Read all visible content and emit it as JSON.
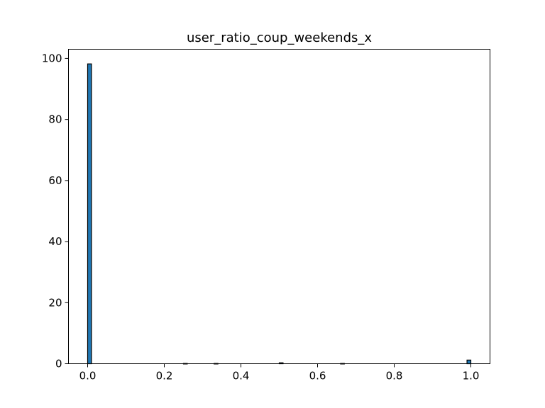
{
  "chart_data": {
    "type": "bar",
    "title": "user_ratio_coup_weekends_x",
    "xlabel": "",
    "ylabel": "",
    "xlim": [
      -0.05,
      1.05
    ],
    "ylim": [
      0,
      103
    ],
    "x_ticks": [
      0.0,
      0.2,
      0.4,
      0.6,
      0.8,
      1.0
    ],
    "x_tick_labels": [
      "0.0",
      "0.2",
      "0.4",
      "0.6",
      "0.8",
      "1.0"
    ],
    "y_ticks": [
      0,
      20,
      40,
      60,
      80,
      100
    ],
    "y_tick_labels": [
      "0",
      "20",
      "40",
      "60",
      "80",
      "100"
    ],
    "bin_width": 0.01,
    "bins": [
      {
        "x": 0.0,
        "value": 98.2
      },
      {
        "x": 0.25,
        "value": 0.1
      },
      {
        "x": 0.33,
        "value": 0.1
      },
      {
        "x": 0.5,
        "value": 0.3
      },
      {
        "x": 0.66,
        "value": 0.1
      },
      {
        "x": 0.99,
        "value": 1.2
      }
    ],
    "bar_color": "#1f77b4",
    "edge_color": "#000000",
    "grid": false,
    "legend": "none"
  }
}
